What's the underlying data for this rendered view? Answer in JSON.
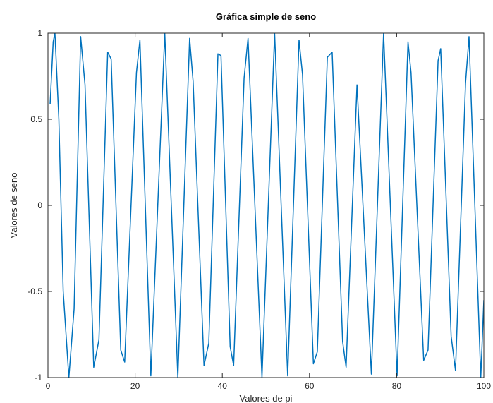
{
  "chart_data": {
    "type": "line",
    "title": "Gráfica simple de seno",
    "xlabel": "Valores de pi",
    "ylabel": "Valores de seno",
    "xlim": [
      0,
      100
    ],
    "ylim": [
      -1,
      1
    ],
    "xticks": [
      0,
      20,
      40,
      60,
      80,
      100
    ],
    "yticks": [
      -1,
      -0.5,
      0,
      0.5,
      1
    ],
    "xtick_labels": [
      "0",
      "20",
      "40",
      "60",
      "80",
      "100"
    ],
    "ytick_labels": [
      "-1",
      "-0.5",
      "0",
      "0.5",
      "1"
    ],
    "grid": false,
    "line_color": "#0072bd",
    "series": [
      {
        "name": "",
        "x": [
          0.5,
          1.2,
          1.6,
          2.5,
          3.5,
          4.8,
          6,
          7.5,
          8.5,
          10.5,
          11.7,
          13.7,
          14.5,
          16.7,
          17.6,
          20.3,
          21.1,
          23.6,
          26.8,
          29.8,
          32.5,
          33.3,
          35.8,
          36.9,
          39,
          39.7,
          41.8,
          42.6,
          45,
          45.9,
          49.1,
          52,
          55,
          57.6,
          58.4,
          60.9,
          61.8,
          64.1,
          65.2,
          67.6,
          68.4,
          70.9,
          74.2,
          77,
          80.1,
          82.6,
          83.3,
          86.2,
          87.2,
          89.5,
          90.1,
          92.5,
          93.5,
          95.8,
          96.6,
          99.3,
          100
        ],
        "y": [
          0.59,
          0.95,
          1,
          0.5,
          -0.5,
          -1,
          -0.6,
          0.98,
          0.7,
          -0.94,
          -0.78,
          0.89,
          0.85,
          -0.84,
          -0.91,
          0.77,
          0.96,
          -0.99,
          1,
          -1,
          0.97,
          0.72,
          -0.93,
          -0.8,
          0.88,
          0.87,
          -0.82,
          -0.93,
          0.74,
          0.97,
          -1,
          1,
          -0.99,
          0.96,
          0.76,
          -0.92,
          -0.85,
          0.86,
          0.89,
          -0.79,
          -0.94,
          0.7,
          -0.98,
          1,
          -0.99,
          0.95,
          0.77,
          -0.9,
          -0.84,
          0.84,
          0.91,
          -0.76,
          -0.96,
          0.71,
          0.98,
          -1,
          -0.55
        ]
      }
    ]
  }
}
